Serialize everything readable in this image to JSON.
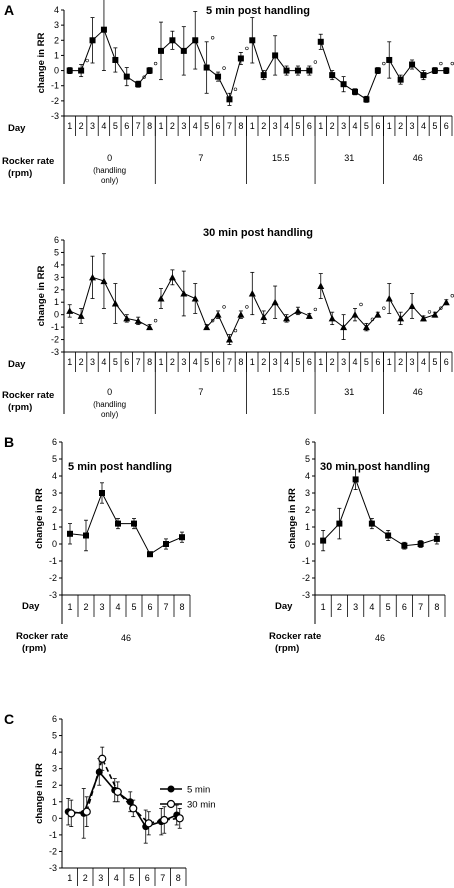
{
  "colors": {
    "ink": "#000000",
    "background": "#ffffff"
  },
  "panels": {
    "a": "A",
    "b": "B",
    "c": "C"
  },
  "labels": {
    "change_rr": "change in RR",
    "day": "Day",
    "rocker_rate": "Rocker rate",
    "rpm": "(rpm)"
  },
  "chart_data": [
    {
      "id": "A1",
      "type": "line",
      "title": "5 min post handling",
      "ylabel": "change in RR",
      "xlabel": "Day",
      "ylim": [
        -3,
        4
      ],
      "yticks": [
        -3,
        -2,
        -1,
        0,
        1,
        2,
        3,
        4
      ],
      "marker": "square",
      "groups": [
        {
          "rocker_rate": "0",
          "note": [
            "(handling",
            "only)"
          ],
          "days": [
            1,
            2,
            3,
            4,
            5,
            6,
            7,
            8
          ],
          "values": [
            0,
            0,
            2,
            2.7,
            0.7,
            -0.4,
            -0.9,
            0
          ],
          "errors": [
            0.2,
            0.4,
            1.5,
            2.7,
            0.8,
            0.6,
            0.2,
            0.2
          ],
          "sig": [
            false,
            true,
            false,
            false,
            false,
            false,
            true,
            true
          ]
        },
        {
          "rocker_rate": "7",
          "days": [
            1,
            2,
            3,
            4,
            5,
            6,
            7,
            8
          ],
          "values": [
            1.3,
            2,
            1.3,
            2,
            0.2,
            -0.4,
            -1.9,
            0.8
          ],
          "errors": [
            1.9,
            0.6,
            1.6,
            1.9,
            1.7,
            0.3,
            0.4,
            0.4
          ],
          "sig": [
            false,
            false,
            false,
            false,
            true,
            true,
            true,
            true
          ]
        },
        {
          "rocker_rate": "15.5",
          "days": [
            1,
            2,
            3,
            4,
            5,
            6
          ],
          "values": [
            2,
            -0.3,
            1,
            0,
            0,
            0
          ],
          "errors": [
            1.5,
            0.3,
            1.3,
            0.3,
            0.3,
            0.3
          ],
          "sig": [
            false,
            false,
            false,
            false,
            false,
            true
          ]
        },
        {
          "rocker_rate": "31",
          "days": [
            1,
            2,
            3,
            4,
            5,
            6
          ],
          "values": [
            1.9,
            -0.3,
            -0.9,
            -1.4,
            -1.9,
            0
          ],
          "errors": [
            0.5,
            0.3,
            0.5,
            0.2,
            0.2,
            0.2
          ],
          "sig": [
            false,
            false,
            false,
            false,
            false,
            true
          ]
        },
        {
          "rocker_rate": "46",
          "days": [
            1,
            2,
            3,
            4,
            5,
            6
          ],
          "values": [
            0.7,
            -0.6,
            0.4,
            -0.3,
            0,
            0
          ],
          "errors": [
            1.2,
            0.3,
            0.3,
            0.3,
            0.2,
            0.2
          ],
          "sig": [
            false,
            false,
            false,
            false,
            true,
            true
          ]
        }
      ]
    },
    {
      "id": "A2",
      "type": "line",
      "title": "30 min post handling",
      "ylabel": "change in RR",
      "xlabel": "Day",
      "ylim": [
        -3,
        6
      ],
      "yticks": [
        -3,
        -2,
        -1,
        0,
        1,
        2,
        3,
        4,
        5,
        6
      ],
      "marker": "triangle",
      "groups": [
        {
          "rocker_rate": "0",
          "note": [
            "(handling",
            "only)"
          ],
          "days": [
            1,
            2,
            3,
            4,
            5,
            6,
            7,
            8
          ],
          "values": [
            0.3,
            -0.1,
            3,
            2.7,
            0.9,
            -0.3,
            -0.5,
            -1
          ],
          "errors": [
            0.5,
            0.6,
            1.7,
            2.2,
            1.6,
            0.3,
            0.3,
            0.2
          ],
          "sig": [
            false,
            false,
            false,
            false,
            false,
            false,
            false,
            true
          ]
        },
        {
          "rocker_rate": "7",
          "days": [
            1,
            2,
            3,
            4,
            5,
            6,
            7,
            8
          ],
          "values": [
            1.3,
            3,
            1.7,
            1.3,
            -1,
            0,
            -2,
            0
          ],
          "errors": [
            0.8,
            0.6,
            1.8,
            1.2,
            0.2,
            0.3,
            0.4,
            0.3
          ],
          "sig": [
            false,
            false,
            false,
            false,
            true,
            true,
            true,
            true
          ]
        },
        {
          "rocker_rate": "15.5",
          "days": [
            1,
            2,
            3,
            4,
            5,
            6
          ],
          "values": [
            1.7,
            -0.2,
            1,
            -0.3,
            0.3,
            -0.1
          ],
          "errors": [
            1.7,
            0.5,
            1.3,
            0.3,
            0.3,
            0.2
          ],
          "sig": [
            false,
            false,
            false,
            false,
            false,
            true
          ]
        },
        {
          "rocker_rate": "31",
          "days": [
            1,
            2,
            3,
            4,
            5,
            6
          ],
          "values": [
            2.3,
            -0.3,
            -1,
            0,
            -1,
            0
          ],
          "errors": [
            1,
            0.5,
            1,
            0.5,
            0.3,
            0.2
          ],
          "sig": [
            false,
            false,
            false,
            true,
            true,
            true
          ]
        },
        {
          "rocker_rate": "46",
          "days": [
            1,
            2,
            3,
            4,
            5,
            6
          ],
          "values": [
            1.3,
            -0.3,
            0.7,
            -0.3,
            0,
            1
          ],
          "errors": [
            1.2,
            0.5,
            1,
            0.2,
            0.2,
            0.2
          ],
          "sig": [
            false,
            false,
            false,
            true,
            true,
            true
          ]
        }
      ]
    },
    {
      "id": "B1",
      "type": "line",
      "title": "5 min post handling",
      "ylabel": "change in RR",
      "xlabel": "Day",
      "ylim": [
        -3,
        6
      ],
      "yticks": [
        -3,
        -2,
        -1,
        0,
        1,
        2,
        3,
        4,
        5,
        6
      ],
      "marker": "square",
      "rocker_rate": "46",
      "x": [
        1,
        2,
        3,
        4,
        5,
        6,
        7,
        8
      ],
      "values": [
        0.6,
        0.5,
        3,
        1.2,
        1.2,
        -0.6,
        0,
        0.4
      ],
      "errors": [
        0.6,
        0.9,
        0.6,
        0.3,
        0.3,
        0.1,
        0.3,
        0.3
      ]
    },
    {
      "id": "B2",
      "type": "line",
      "title": "30 min post handling",
      "ylabel": "change in RR",
      "xlabel": "Day",
      "ylim": [
        -3,
        6
      ],
      "yticks": [
        -3,
        -2,
        -1,
        0,
        1,
        2,
        3,
        4,
        5,
        6
      ],
      "marker": "square",
      "rocker_rate": "46",
      "x": [
        1,
        2,
        3,
        4,
        5,
        6,
        7,
        8
      ],
      "values": [
        0.2,
        1.2,
        3.8,
        1.2,
        0.5,
        -0.1,
        0,
        0.3
      ],
      "errors": [
        0.6,
        0.9,
        0.6,
        0.3,
        0.3,
        0.2,
        0.2,
        0.3
      ]
    },
    {
      "id": "C",
      "type": "line",
      "ylabel": "change in RR",
      "xlabel": "Day",
      "ylim": [
        -3,
        6
      ],
      "yticks": [
        -3,
        -2,
        -1,
        0,
        1,
        2,
        3,
        4,
        5,
        6
      ],
      "x": [
        1,
        2,
        3,
        4,
        5,
        6,
        7,
        8
      ],
      "legend_position": "top-right",
      "series": [
        {
          "name": "5 min",
          "marker": "filled-circle",
          "values": [
            0.4,
            0.3,
            2.8,
            1.7,
            1.0,
            -0.5,
            -0.2,
            0.2
          ],
          "errors": [
            0.8,
            1.5,
            0.8,
            0.7,
            0.6,
            1.0,
            0.8,
            0.6
          ]
        },
        {
          "name": "30 min",
          "marker": "open-circle",
          "values": [
            0.3,
            0.4,
            3.6,
            1.6,
            0.6,
            -0.3,
            -0.1,
            0.0
          ],
          "errors": [
            0.8,
            0.9,
            0.7,
            0.6,
            0.5,
            0.7,
            0.8,
            0.6
          ]
        }
      ]
    }
  ]
}
